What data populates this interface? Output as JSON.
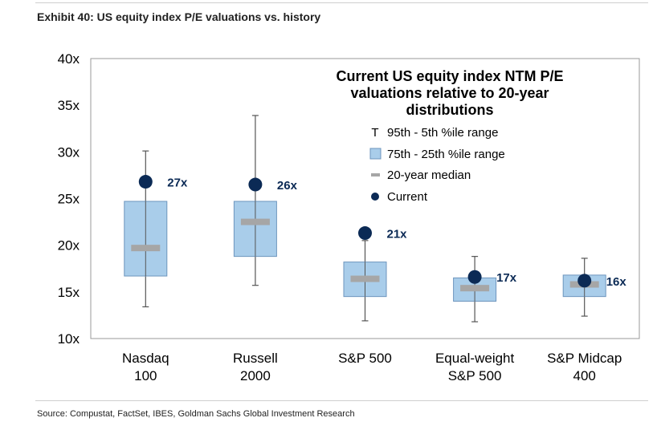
{
  "exhibit_title": "Exhibit 40: US equity index P/E valuations vs. history",
  "source": "Source: Compustat, FactSet, IBES, Goldman Sachs Global Investment Research",
  "colors": {
    "box_fill": "#a9cdea",
    "box_stroke": "#6d95bd",
    "whisker": "#555555",
    "median": "#a6a6a6",
    "current": "#0b2a55",
    "label": "#0b2a55",
    "frame": "#9a9a9a"
  },
  "chart_data": {
    "type": "box",
    "title": "Current US equity index NTM P/E valuations relative to 20-year distributions",
    "title_lines": [
      "Current US equity index NTM P/E",
      "valuations relative to 20-year",
      "distributions"
    ],
    "ylim": [
      10,
      40
    ],
    "yticks": [
      10,
      15,
      20,
      25,
      30,
      35,
      40
    ],
    "ytick_suffix": "x",
    "legend": {
      "placement": "top-right",
      "items": [
        {
          "key": "whisker",
          "symbol": "T",
          "label": "95th - 5th %ile range"
        },
        {
          "key": "box",
          "label": "75th - 25th %ile range"
        },
        {
          "key": "median",
          "label": "20-year median"
        },
        {
          "key": "current",
          "label": "Current"
        }
      ]
    },
    "categories": [
      {
        "lines": [
          "Nasdaq",
          "100"
        ],
        "p5": 13.4,
        "p25": 16.7,
        "median": 19.7,
        "p75": 24.7,
        "p95": 30.1,
        "current": 26.8,
        "current_label": "27x"
      },
      {
        "lines": [
          "Russell",
          "2000"
        ],
        "p5": 15.7,
        "p25": 18.8,
        "median": 22.5,
        "p75": 24.7,
        "p95": 33.9,
        "current": 26.5,
        "current_label": "26x"
      },
      {
        "lines": [
          "S&P 500"
        ],
        "p5": 11.9,
        "p25": 14.5,
        "median": 16.4,
        "p75": 18.2,
        "p95": 20.5,
        "current": 21.3,
        "current_label": "21x"
      },
      {
        "lines": [
          "Equal-weight",
          "S&P 500"
        ],
        "p5": 11.8,
        "p25": 14.0,
        "median": 15.4,
        "p75": 16.5,
        "p95": 18.8,
        "current": 16.6,
        "current_label": "17x"
      },
      {
        "lines": [
          "S&P Midcap",
          "400"
        ],
        "p5": 12.4,
        "p25": 14.5,
        "median": 15.8,
        "p75": 16.8,
        "p95": 18.6,
        "current": 16.2,
        "current_label": "16x"
      }
    ]
  }
}
